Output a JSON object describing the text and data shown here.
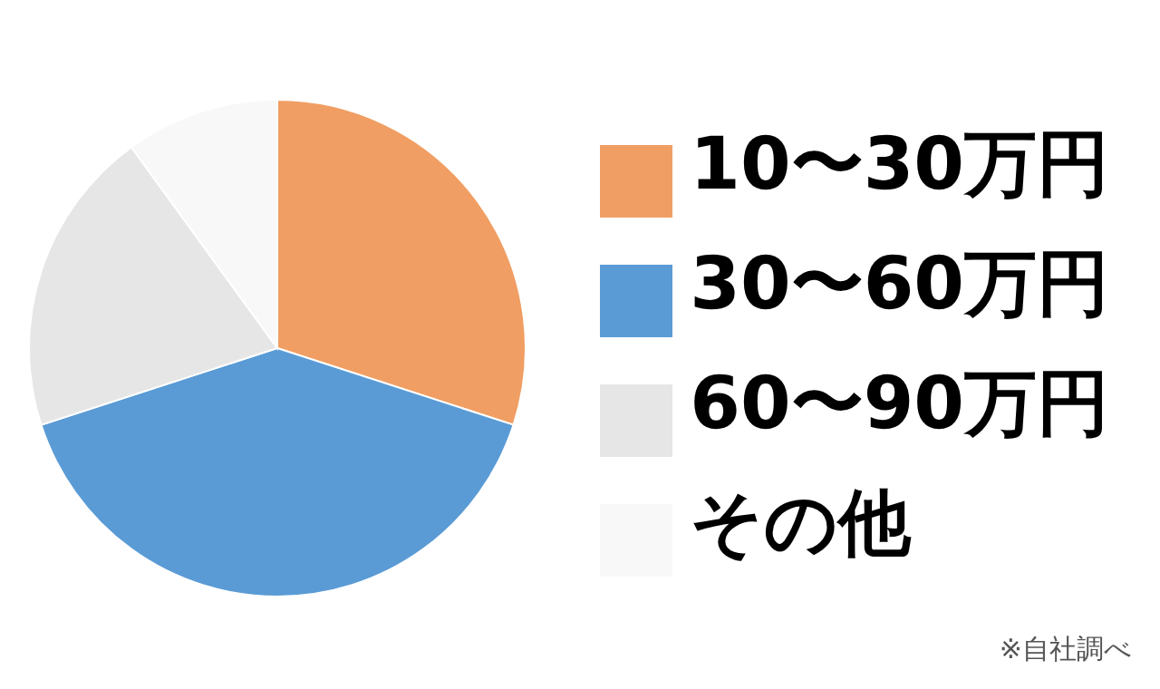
{
  "chart_data": {
    "type": "pie",
    "categories": [
      "10〜30万円",
      "30〜60万円",
      "60〜90万円",
      "その他"
    ],
    "values": [
      30,
      40,
      20,
      10
    ],
    "colors": [
      "#f09e63",
      "#5a9bd5",
      "#e6e6e6",
      "#f8f8f8"
    ],
    "legend": "right",
    "annotations": [
      "※自社調べ"
    ]
  }
}
